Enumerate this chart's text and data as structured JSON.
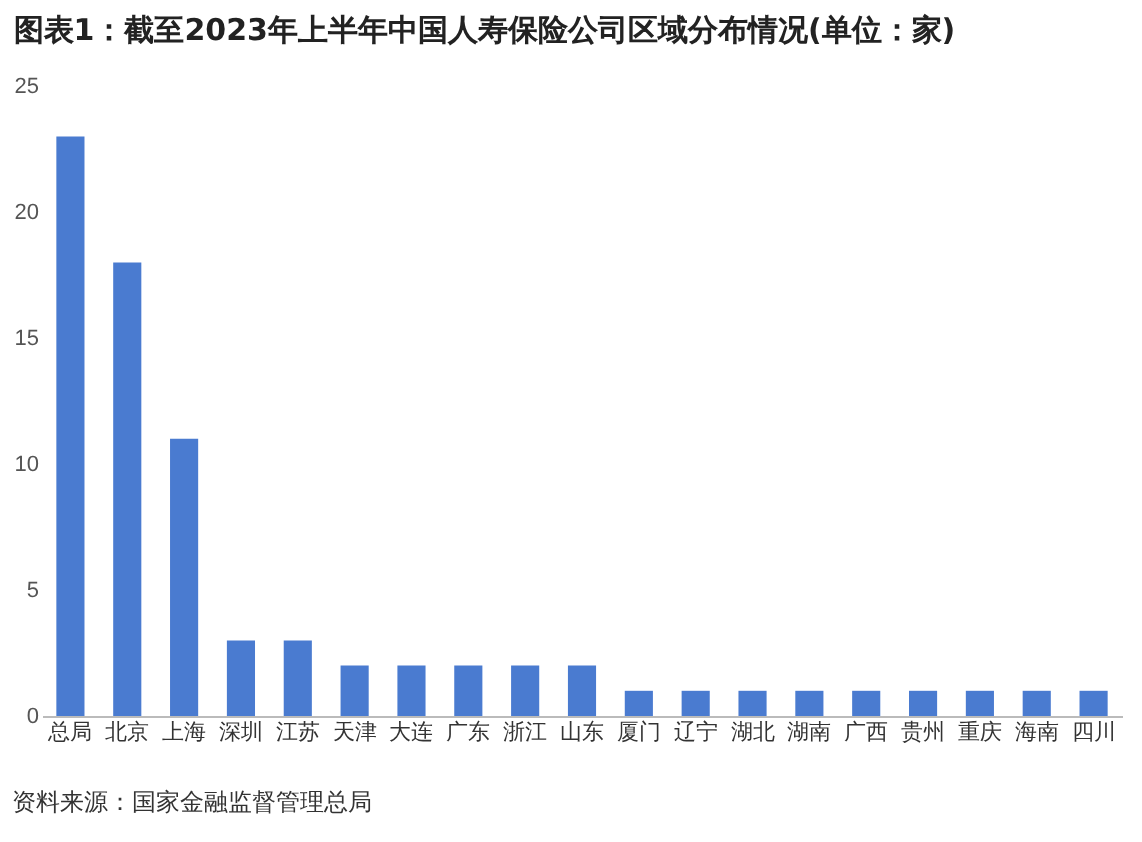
{
  "chart_data": {
    "type": "bar",
    "title": "图表1：截至2023年上半年中国人寿保险公司区域分布情况(单位：家)",
    "categories": [
      "总局",
      "北京",
      "上海",
      "深圳",
      "江苏",
      "天津",
      "大连",
      "广东",
      "浙江",
      "山东",
      "厦门",
      "辽宁",
      "湖北",
      "湖南",
      "广西",
      "贵州",
      "重庆",
      "海南",
      "四川"
    ],
    "values": [
      23,
      18,
      11,
      3,
      3,
      2,
      2,
      2,
      2,
      2,
      1,
      1,
      1,
      1,
      1,
      1,
      1,
      1,
      1
    ],
    "color": "#4a7bd0",
    "ylim": [
      0,
      25
    ],
    "yticks": [
      0,
      5,
      10,
      15,
      20,
      25
    ],
    "grid": false,
    "annotations": [
      "资料来源：国家金融监督管理总局"
    ]
  }
}
